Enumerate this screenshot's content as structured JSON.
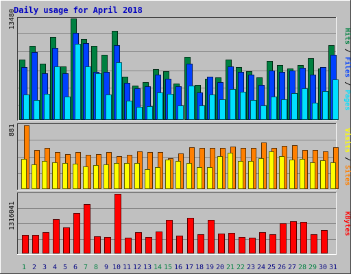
{
  "title": "Daily usage for April 2018",
  "colors": {
    "background": "#c0c0c0",
    "title": "#0000c0",
    "hits": "#008040",
    "files": "#0040ff",
    "pages": "#00e0ff",
    "visits": "#ffff00",
    "sites": "#ff8000",
    "kbytes": "#ff0000",
    "weekend_day_label": "#008040",
    "weekday_label": "#000080"
  },
  "chart_data": [
    {
      "type": "bar",
      "panel": "hits-files-pages",
      "categories": [
        "1",
        "2",
        "3",
        "4",
        "5",
        "6",
        "7",
        "8",
        "9",
        "10",
        "11",
        "12",
        "13",
        "14",
        "15",
        "16",
        "17",
        "18",
        "19",
        "20",
        "21",
        "22",
        "23",
        "24",
        "25",
        "26",
        "27",
        "28",
        "29",
        "30",
        "31"
      ],
      "ytick_label": "13480",
      "ylim": [
        0,
        15290
      ],
      "right_labels": [
        {
          "text": "Hits",
          "color": "#008040"
        },
        {
          "text": " / ",
          "color": "#000000"
        },
        {
          "text": "Files",
          "color": "#0040ff"
        },
        {
          "text": " / ",
          "color": "#000000"
        },
        {
          "text": "Pages",
          "color": "#00e0ff"
        }
      ],
      "series": [
        {
          "name": "Hits",
          "values": [
            9080,
            11130,
            8480,
            12480,
            8100,
            15290,
            12190,
            11130,
            9850,
            13480,
            6460,
            5160,
            5720,
            7650,
            7340,
            5500,
            9470,
            5270,
            6190,
            6400,
            9060,
            7960,
            7310,
            6400,
            8840,
            8290,
            7730,
            8220,
            9340,
            7770,
            11290
          ]
        },
        {
          "name": "Files",
          "values": [
            7990,
            10230,
            6990,
            10810,
            7050,
            13170,
            11620,
            7260,
            7260,
            11230,
            5610,
            4800,
            5100,
            6860,
            6210,
            5060,
            8490,
            4130,
            6560,
            5680,
            8100,
            7190,
            6800,
            5310,
            7480,
            7240,
            7480,
            7800,
            6840,
            8000,
            9790
          ]
        },
        {
          "name": "Pages",
          "values": [
            3780,
            2960,
            3880,
            8100,
            3540,
            11420,
            8100,
            7050,
            3830,
            8700,
            2930,
            1970,
            2110,
            4180,
            3910,
            2190,
            5140,
            2140,
            3840,
            3150,
            4650,
            4190,
            2970,
            2190,
            3480,
            3080,
            3980,
            4780,
            2620,
            4320,
            6070
          ]
        }
      ]
    },
    {
      "type": "bar",
      "panel": "visits-sites",
      "categories": [
        "1",
        "2",
        "3",
        "4",
        "5",
        "6",
        "7",
        "8",
        "9",
        "10",
        "11",
        "12",
        "13",
        "14",
        "15",
        "16",
        "17",
        "18",
        "19",
        "20",
        "21",
        "22",
        "23",
        "24",
        "25",
        "26",
        "27",
        "28",
        "29",
        "30",
        "31"
      ],
      "ytick_label": "881",
      "ylim": [
        0,
        881
      ],
      "right_labels": [
        {
          "text": "Visits",
          "color": "#ffff00"
        },
        {
          "text": " / ",
          "color": "#000000"
        },
        {
          "text": "Sites",
          "color": "#ff8000"
        }
      ],
      "series": [
        {
          "name": "Visits",
          "values": [
            410,
            340,
            380,
            370,
            360,
            350,
            310,
            330,
            340,
            360,
            360,
            360,
            270,
            300,
            400,
            380,
            360,
            300,
            300,
            450,
            500,
            380,
            380,
            420,
            520,
            450,
            400,
            410,
            370,
            390,
            370
          ]
        },
        {
          "name": "Sites",
          "values": [
            870,
            530,
            560,
            510,
            480,
            510,
            470,
            480,
            510,
            450,
            470,
            520,
            510,
            510,
            420,
            490,
            570,
            560,
            560,
            560,
            580,
            560,
            560,
            640,
            560,
            590,
            600,
            530,
            530,
            520,
            570
          ]
        }
      ]
    },
    {
      "type": "bar",
      "panel": "kbytes",
      "categories": [
        "1",
        "2",
        "3",
        "4",
        "5",
        "6",
        "7",
        "8",
        "9",
        "10",
        "11",
        "12",
        "13",
        "14",
        "15",
        "16",
        "17",
        "18",
        "19",
        "20",
        "21",
        "22",
        "23",
        "24",
        "25",
        "26",
        "27",
        "28",
        "29",
        "30",
        "31"
      ],
      "ytick_label": "1316041",
      "ylim": [
        0,
        1750000
      ],
      "right_labels": [
        {
          "text": "KBytes",
          "color": "#ff0000"
        }
      ],
      "series": [
        {
          "name": "KBytes",
          "values": [
            540000,
            540000,
            620000,
            1000000,
            760000,
            1180000,
            1440000,
            500000,
            490000,
            1740000,
            460000,
            620000,
            490000,
            640000,
            980000,
            520000,
            1050000,
            570000,
            980000,
            590000,
            610000,
            490000,
            470000,
            630000,
            570000,
            890000,
            940000,
            920000,
            570000,
            690000,
            0
          ]
        }
      ]
    }
  ],
  "day_labels": [
    {
      "text": "1",
      "color": "#008040"
    },
    {
      "text": "2",
      "color": "#000080"
    },
    {
      "text": "3",
      "color": "#000080"
    },
    {
      "text": "4",
      "color": "#000080"
    },
    {
      "text": "5",
      "color": "#000080"
    },
    {
      "text": "6",
      "color": "#000080"
    },
    {
      "text": "7",
      "color": "#008040"
    },
    {
      "text": "8",
      "color": "#008040"
    },
    {
      "text": "9",
      "color": "#000080"
    },
    {
      "text": "10",
      "color": "#000080"
    },
    {
      "text": "11",
      "color": "#000080"
    },
    {
      "text": "12",
      "color": "#000080"
    },
    {
      "text": "13",
      "color": "#000080"
    },
    {
      "text": "14",
      "color": "#008040"
    },
    {
      "text": "15",
      "color": "#008040"
    },
    {
      "text": "16",
      "color": "#000080"
    },
    {
      "text": "17",
      "color": "#000080"
    },
    {
      "text": "18",
      "color": "#000080"
    },
    {
      "text": "19",
      "color": "#000080"
    },
    {
      "text": "20",
      "color": "#000080"
    },
    {
      "text": "21",
      "color": "#008040"
    },
    {
      "text": "22",
      "color": "#008040"
    },
    {
      "text": "23",
      "color": "#000080"
    },
    {
      "text": "24",
      "color": "#000080"
    },
    {
      "text": "25",
      "color": "#000080"
    },
    {
      "text": "26",
      "color": "#000080"
    },
    {
      "text": "27",
      "color": "#000080"
    },
    {
      "text": "28",
      "color": "#008040"
    },
    {
      "text": "29",
      "color": "#008040"
    },
    {
      "text": "30",
      "color": "#000080"
    },
    {
      "text": "31",
      "color": "#000080"
    }
  ]
}
